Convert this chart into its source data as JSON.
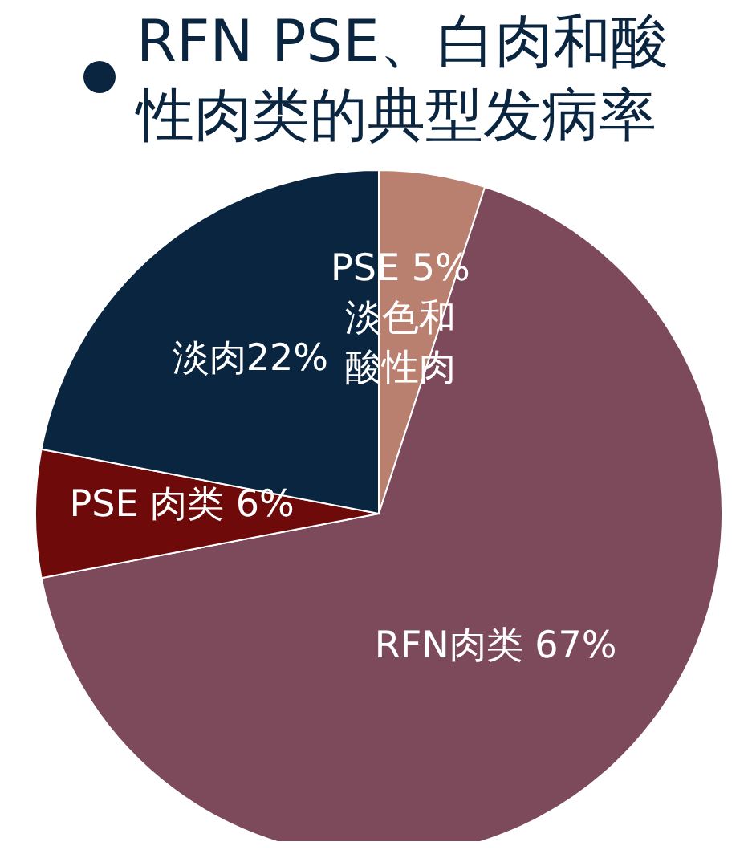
{
  "chart_data": {
    "type": "pie",
    "title": "RFN PSE、白肉和酸性肉类的典型发病率",
    "categories": [
      "PSE 5% 淡色和酸性肉",
      "RFN肉类 67%",
      "PSE 肉类 6%",
      "淡肉22%"
    ],
    "values": [
      5,
      67,
      6,
      22
    ],
    "colors": [
      "#b98070",
      "#7d4a5c",
      "#6e0a0a",
      "#0a2540"
    ],
    "legend": false
  }
}
